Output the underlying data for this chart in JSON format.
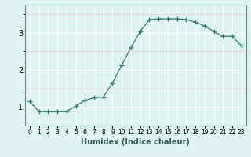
{
  "x": [
    0,
    1,
    2,
    3,
    4,
    5,
    6,
    7,
    8,
    9,
    10,
    11,
    12,
    13,
    14,
    15,
    16,
    17,
    18,
    19,
    20,
    21,
    22,
    23
  ],
  "y": [
    1.15,
    0.88,
    0.87,
    0.87,
    0.88,
    1.02,
    1.18,
    1.25,
    1.27,
    1.65,
    2.13,
    2.6,
    3.03,
    3.35,
    3.37,
    3.37,
    3.37,
    3.35,
    3.28,
    3.18,
    3.03,
    2.9,
    2.9,
    2.65
  ],
  "xlabel": "Humidex (Indice chaleur)",
  "xlim": [
    -0.5,
    23.5
  ],
  "ylim": [
    0.5,
    3.75
  ],
  "yticks": [
    1,
    2,
    3
  ],
  "line_color": "#2e7d6e",
  "marker": "+",
  "marker_size": 4,
  "bg_color": "#dff4f4",
  "grid_major_color": "#ffffff",
  "grid_minor_color": "#f0cccc",
  "spine_color": "#5a8a80",
  "xlabel_fontsize": 7,
  "ytick_fontsize": 7,
  "xtick_fontsize": 5.5
}
